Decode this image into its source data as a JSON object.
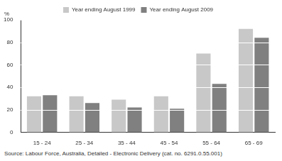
{
  "chart_data": {
    "type": "bar",
    "ylabel": "%",
    "source": "Source: Labour Force, Australia, Detailed - Electronic Delivery (cat. no. 6291.0.55.001)",
    "categories": [
      "15 - 24",
      "25 - 34",
      "35 - 44",
      "45 - 54",
      "55 - 64",
      "65 - 69"
    ],
    "series": [
      {
        "name": "Year ending August 1999",
        "color": "#c8c8c8",
        "values": [
          32,
          32,
          29,
          32,
          70,
          92
        ]
      },
      {
        "name": "Year ending August 2009",
        "color": "#808080",
        "values": [
          33,
          26,
          22,
          21,
          43,
          84
        ]
      }
    ],
    "ylim": [
      0,
      100
    ],
    "yticks": [
      0,
      20,
      40,
      60,
      80,
      100
    ],
    "grid": true,
    "legend": "top"
  }
}
